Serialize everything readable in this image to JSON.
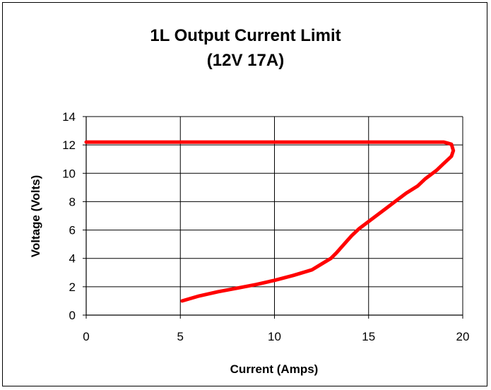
{
  "chart_data": {
    "type": "line",
    "title": "1L Output Current Limit",
    "subtitle": "(12V 17A)",
    "xlabel": "Current (Amps)",
    "ylabel": "Voltage (Volts)",
    "xlim": [
      0,
      20
    ],
    "ylim": [
      0,
      14
    ],
    "xticks": [
      "0",
      "5",
      "10",
      "15",
      "20"
    ],
    "yticks": [
      "0",
      "2",
      "4",
      "6",
      "8",
      "10",
      "12",
      "14"
    ],
    "grid": true,
    "series": [
      {
        "color": "#ff0000",
        "x": [
          0,
          5,
          10,
          19,
          19.4,
          19.5,
          19.4,
          19,
          18.6,
          18,
          17.6,
          17,
          16.5,
          16,
          15.5,
          15,
          14.5,
          14.1,
          13.7,
          13.3,
          13,
          12.5,
          12,
          11,
          10,
          9,
          8,
          7,
          6,
          5.1
        ],
        "y": [
          12.2,
          12.2,
          12.2,
          12.2,
          12.05,
          11.6,
          11.2,
          10.7,
          10.2,
          9.6,
          9.1,
          8.6,
          8.1,
          7.6,
          7.1,
          6.6,
          6.1,
          5.6,
          5.0,
          4.4,
          4.0,
          3.6,
          3.2,
          2.8,
          2.45,
          2.15,
          1.9,
          1.65,
          1.35,
          1.0
        ]
      }
    ]
  }
}
